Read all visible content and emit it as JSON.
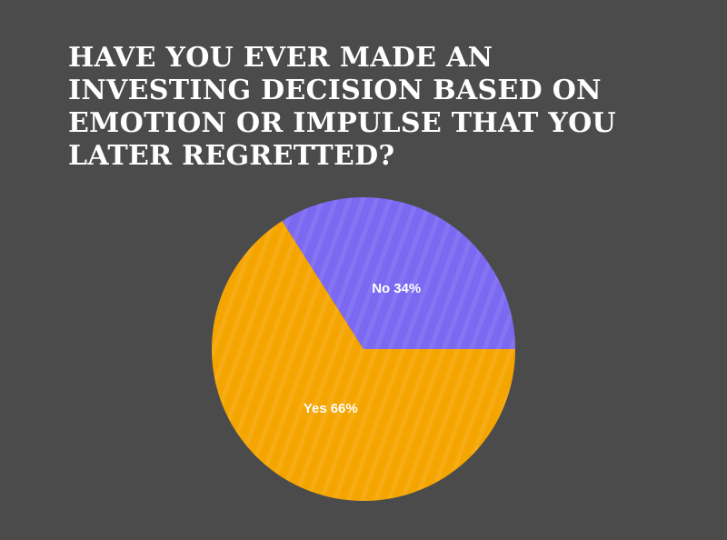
{
  "chart_data": {
    "type": "pie",
    "title": "HAVE YOU EVER MADE AN INVESTING DECISION BASED ON EMOTION OR IMPULSE THAT YOU LATER REGRETTED?",
    "categories": [
      "Yes",
      "No"
    ],
    "values": [
      66,
      34
    ],
    "value_labels": [
      "66%",
      "34%"
    ],
    "colors": [
      "#f5a500",
      "#7b69f2"
    ]
  }
}
